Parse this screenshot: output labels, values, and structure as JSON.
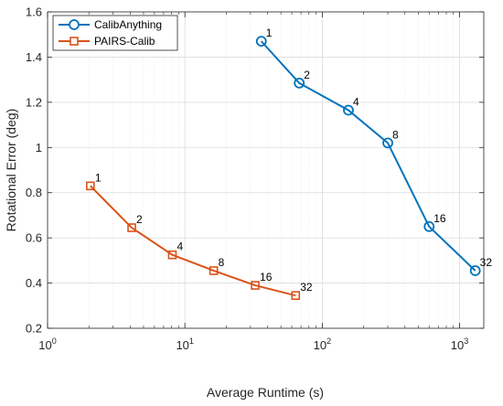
{
  "chart_data": {
    "type": "line",
    "xscale": "log",
    "xlim": [
      1,
      1500
    ],
    "ylim": [
      0.2,
      1.6
    ],
    "xlabel": "Average Runtime (s)",
    "ylabel": "Rotational Error (deg)",
    "xticks": [
      {
        "value": 1,
        "base": "10",
        "exp": "0"
      },
      {
        "value": 10,
        "base": "10",
        "exp": "1"
      },
      {
        "value": 100,
        "base": "10",
        "exp": "2"
      },
      {
        "value": 1000,
        "base": "10",
        "exp": "3"
      }
    ],
    "yticks": [
      {
        "value": 0.2,
        "label": "0.2"
      },
      {
        "value": 0.4,
        "label": "0.4"
      },
      {
        "value": 0.6,
        "label": "0.6"
      },
      {
        "value": 0.8,
        "label": "0.8"
      },
      {
        "value": 1.0,
        "label": "1"
      },
      {
        "value": 1.2,
        "label": "1.2"
      },
      {
        "value": 1.4,
        "label": "1.4"
      },
      {
        "value": 1.6,
        "label": "1.6"
      }
    ],
    "grid": true,
    "legend_position": "top-left",
    "series": [
      {
        "name": "CalibAnything",
        "color": "#0072BD",
        "marker": "circle",
        "x": [
          36,
          68,
          155,
          300,
          600,
          1300
        ],
        "y": [
          1.47,
          1.285,
          1.165,
          1.02,
          0.65,
          0.455
        ],
        "labels": [
          "1",
          "2",
          "4",
          "8",
          "16",
          "32"
        ]
      },
      {
        "name": "PAIRS-Calib",
        "color": "#D95319",
        "marker": "square",
        "x": [
          2.05,
          4.1,
          8.1,
          16.2,
          32.5,
          64
        ],
        "y": [
          0.83,
          0.645,
          0.525,
          0.455,
          0.39,
          0.345
        ],
        "labels": [
          "1",
          "2",
          "4",
          "8",
          "16",
          "32"
        ]
      }
    ]
  }
}
